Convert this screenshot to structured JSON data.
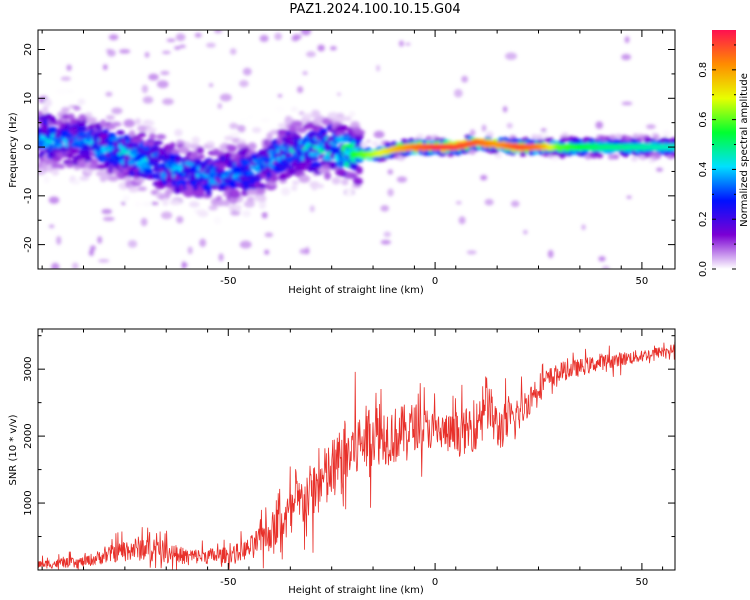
{
  "figure": {
    "title": "PAZ1.2024.100.10.15.G04"
  },
  "chart_data": [
    {
      "type": "heatmap",
      "title": "PAZ1.2024.100.10.15.G04",
      "xlabel": "Height of straight line (km)",
      "ylabel": "Frequency (Hz)",
      "xlim": [
        -96,
        58
      ],
      "ylim": [
        -25,
        24
      ],
      "x_ticks": [
        -50,
        0,
        50
      ],
      "y_ticks": [
        -20,
        -10,
        0,
        10,
        20
      ],
      "colorbar": {
        "label": "Normalized spectral amplitude",
        "range": [
          0,
          0.96
        ],
        "ticks": [
          0.0,
          0.2,
          0.4,
          0.6,
          0.8
        ],
        "colormap": [
          "#ffffff",
          "#7b00d4",
          "#0010ff",
          "#00e0ff",
          "#00ff30",
          "#e8ff00",
          "#ff8c00",
          "#ff1050"
        ]
      },
      "ridge": {
        "x": [
          -96,
          -85,
          -75,
          -65,
          -55,
          -45,
          -35,
          -25,
          -20,
          -15,
          -10,
          -5,
          0,
          5,
          10,
          15,
          20,
          25,
          30,
          40,
          58
        ],
        "center_hz": [
          2,
          1,
          -1,
          -4,
          -6,
          -5,
          -1,
          0,
          -1.5,
          -1.5,
          -0.5,
          0,
          0,
          0,
          1,
          0.5,
          0,
          0,
          0,
          0,
          0
        ],
        "peak_amplitude": [
          0.4,
          0.35,
          0.42,
          0.4,
          0.38,
          0.35,
          0.4,
          0.45,
          0.55,
          0.65,
          0.75,
          0.85,
          0.92,
          0.9,
          0.88,
          0.8,
          0.9,
          0.85,
          0.6,
          0.5,
          0.45
        ]
      }
    },
    {
      "type": "line",
      "xlabel": "Height of straight line (km)",
      "ylabel": "SNR (10 * v/v)",
      "xlim": [
        -96,
        58
      ],
      "ylim": [
        0,
        3600
      ],
      "x_ticks": [
        -50,
        0,
        50
      ],
      "y_ticks": [
        1000,
        2000,
        3000
      ],
      "line_color": "#e8302a",
      "envelope": {
        "x": [
          -96,
          -85,
          -75,
          -70,
          -60,
          -50,
          -45,
          -40,
          -35,
          -30,
          -25,
          -20,
          -15,
          -10,
          -5,
          0,
          5,
          10,
          12,
          15,
          20,
          25,
          30,
          40,
          50,
          58
        ],
        "mean": [
          80,
          120,
          300,
          330,
          200,
          220,
          320,
          550,
          850,
          1150,
          1450,
          1800,
          2050,
          2000,
          2150,
          2100,
          2000,
          2150,
          2600,
          2100,
          2300,
          2750,
          2950,
          3100,
          3200,
          3300
        ],
        "spread": [
          80,
          100,
          200,
          250,
          150,
          150,
          200,
          350,
          450,
          550,
          650,
          650,
          600,
          550,
          450,
          350,
          400,
          450,
          500,
          450,
          350,
          250,
          180,
          150,
          120,
          100
        ]
      }
    }
  ]
}
